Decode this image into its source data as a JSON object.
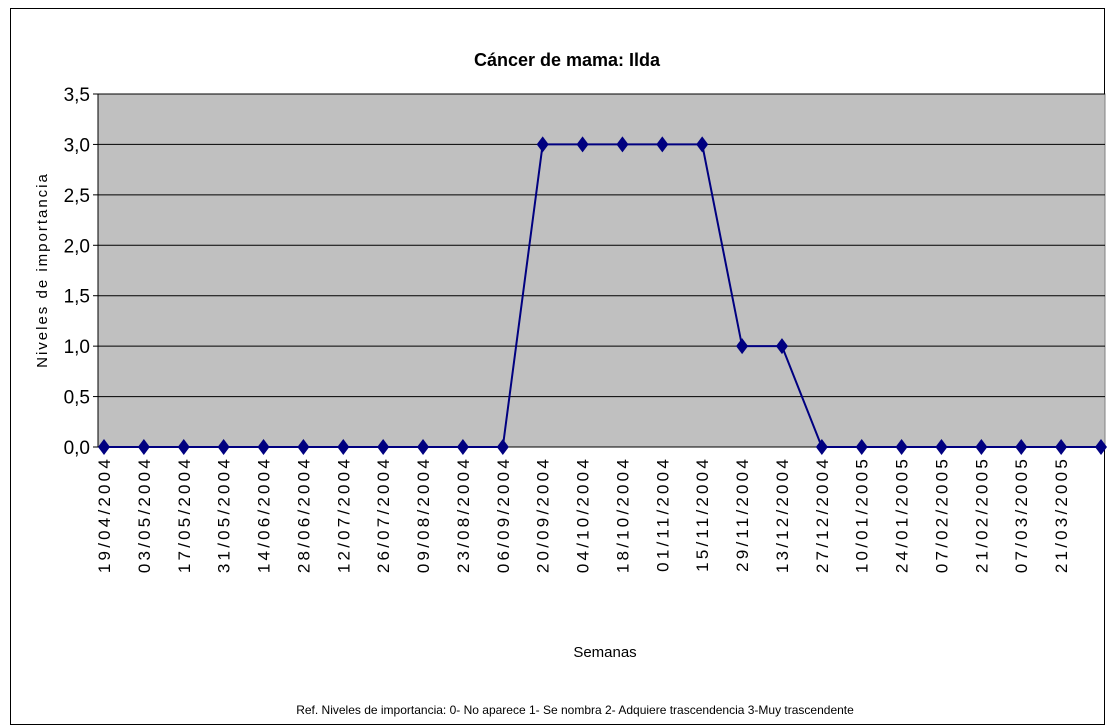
{
  "chart_data": {
    "type": "line",
    "title": "Cáncer de mama: Ilda",
    "x_label": "Semanas",
    "y_label": "Niveles de importancia",
    "note": "Ref. Niveles de importancia: 0- No aparece  1- Se nombra  2- Adquiere trascendencia  3-Muy trascendente",
    "categories": [
      "19/04/2004",
      "03/05/2004",
      "17/05/2004",
      "31/05/2004",
      "14/06/2004",
      "28/06/2004",
      "12/07/2004",
      "26/07/2004",
      "09/08/2004",
      "23/08/2004",
      "06/09/2004",
      "20/09/2004",
      "04/10/2004",
      "18/10/2004",
      "01/11/2004",
      "15/11/2004",
      "29/11/2004",
      "13/12/2004",
      "27/12/2004",
      "10/01/2005",
      "24/01/2005",
      "07/02/2005",
      "21/02/2005",
      "07/03/2005",
      "21/03/2005",
      null
    ],
    "values": [
      0,
      0,
      0,
      0,
      0,
      0,
      0,
      0,
      0,
      0,
      0,
      3,
      3,
      3,
      3,
      3,
      1,
      1,
      0,
      0,
      0,
      0,
      0,
      0,
      0,
      0
    ],
    "color": "#000080",
    "background": "#c0c0c0",
    "ylim": [
      0,
      3.5
    ],
    "yticks": [
      {
        "value": 0,
        "label": "0,0"
      },
      {
        "value": 0.5,
        "label": "0,5"
      },
      {
        "value": 1,
        "label": "1,0"
      },
      {
        "value": 1.5,
        "label": "1,5"
      },
      {
        "value": 2,
        "label": "2,0"
      },
      {
        "value": 2.5,
        "label": "2,5"
      },
      {
        "value": 3,
        "label": "3,0"
      },
      {
        "value": 3.5,
        "label": "3,5"
      }
    ],
    "grid": true
  }
}
